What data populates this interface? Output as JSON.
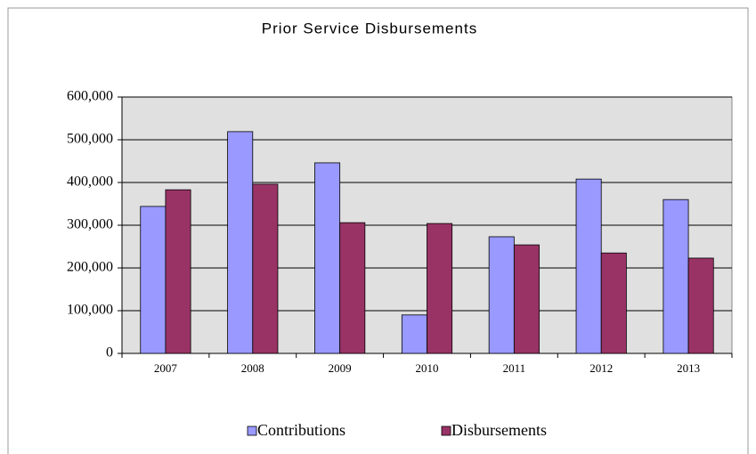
{
  "chart_data": {
    "type": "bar",
    "title": "Prior Service Disbursements",
    "categories": [
      "2007",
      "2008",
      "2009",
      "2010",
      "2011",
      "2012",
      "2013"
    ],
    "series": [
      {
        "name": "Contributions",
        "color": "#9999ff",
        "values": [
          344000,
          519000,
          446000,
          90000,
          273000,
          408000,
          360000
        ]
      },
      {
        "name": "Disbursements",
        "color": "#993366",
        "values": [
          383000,
          396000,
          306000,
          304000,
          254000,
          235000,
          223000
        ]
      }
    ],
    "ylim": [
      0,
      600000
    ],
    "yticks": [
      0,
      {
        "value": 100000,
        "label": "100,000"
      },
      {
        "value": 200000,
        "label": "200,000"
      },
      {
        "value": 300000,
        "label": "300,000"
      },
      {
        "value": 400000,
        "label": "400,000"
      },
      {
        "value": 500000,
        "label": "500,000"
      },
      {
        "value": 600000,
        "label": "600,000"
      }
    ],
    "grid": true,
    "legend": "bottom"
  }
}
